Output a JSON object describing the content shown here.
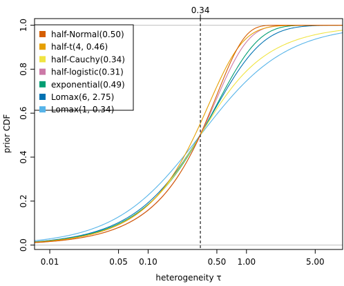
{
  "chart_data": {
    "type": "line",
    "xlabel": "heterogeneity τ",
    "ylabel": "prior CDF",
    "x_scale": "log",
    "xlim": [
      0.007,
      9.5
    ],
    "ylim": [
      -0.02,
      1.03
    ],
    "x_ticks": [
      {
        "value": 0.01,
        "label": "0.01"
      },
      {
        "value": 0.05,
        "label": "0.05"
      },
      {
        "value": 0.1,
        "label": "0.10"
      },
      {
        "value": 0.5,
        "label": "0.50"
      },
      {
        "value": 1.0,
        "label": "1.00"
      },
      {
        "value": 5.0,
        "label": "5.00"
      }
    ],
    "y_ticks": [
      {
        "value": 0.0,
        "label": "0.0"
      },
      {
        "value": 0.2,
        "label": "0.2"
      },
      {
        "value": 0.4,
        "label": "0.4"
      },
      {
        "value": 0.6,
        "label": "0.6"
      },
      {
        "value": 0.8,
        "label": "0.8"
      },
      {
        "value": 1.0,
        "label": "1.0"
      }
    ],
    "reference_lines": [
      0.0,
      1.0
    ],
    "median_marker": {
      "value": 0.34,
      "label": "0.34"
    },
    "legend_position": "top-left",
    "series": [
      {
        "name": "half-Normal(0.50)",
        "color": "#D55E00",
        "dist": "halfnormal",
        "scale": 0.5
      },
      {
        "name": "half-t(4, 0.46)",
        "color": "#E69F00",
        "dist": "halft",
        "df": 4,
        "scale": 0.46
      },
      {
        "name": "half-Cauchy(0.34)",
        "color": "#F0E442",
        "dist": "halfcauchy",
        "scale": 0.34
      },
      {
        "name": "half-logistic(0.31)",
        "color": "#CC79A7",
        "dist": "halflogistic",
        "scale": 0.31
      },
      {
        "name": "exponential(0.49)",
        "color": "#009E73",
        "dist": "exponential",
        "rate": 0.49
      },
      {
        "name": "Lomax(6, 2.75)",
        "color": "#0072B2",
        "dist": "lomax",
        "shape": 6,
        "scale": 2.75
      },
      {
        "name": "Lomax(1, 0.34)",
        "color": "#56B4E9",
        "dist": "lomax",
        "shape": 1,
        "scale": 0.34
      }
    ]
  }
}
